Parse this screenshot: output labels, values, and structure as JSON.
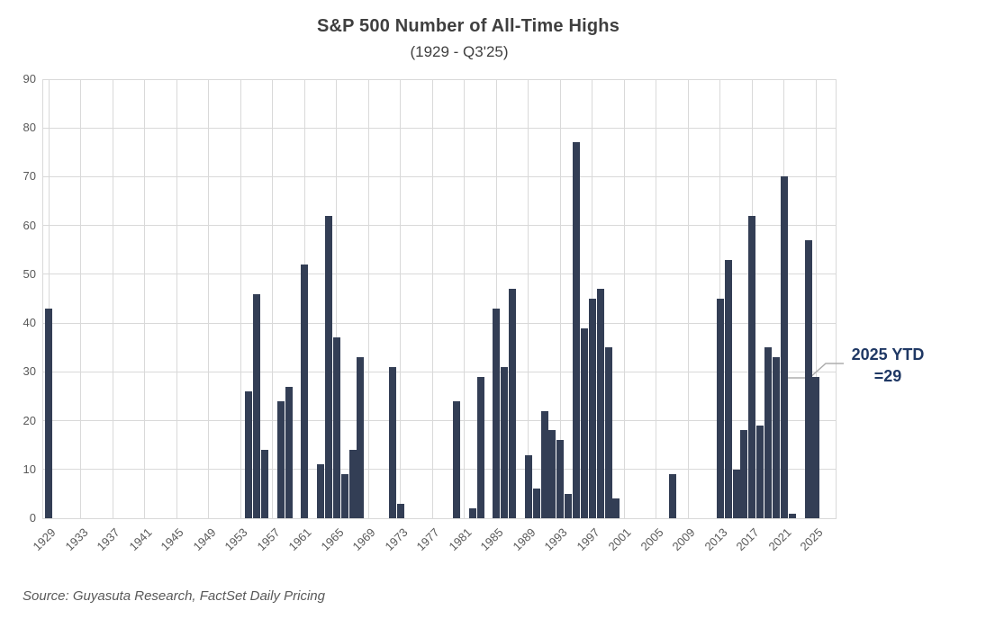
{
  "title": "S&P 500 Number of All-Time Highs",
  "subtitle": "(1929 - Q3'25)",
  "source": "Source: Guyasuta Research, FactSet Daily Pricing",
  "annotation": {
    "line1": "2025 YTD",
    "line2": "=29"
  },
  "colors": {
    "bar": "#333e55",
    "title_text": "#3f3f3f",
    "axis_label": "#595959",
    "gridline": "#d9d9d9",
    "annotation_text": "#1f3864",
    "leader_line": "#adadad",
    "background": "#ffffff"
  },
  "chart_data": {
    "type": "bar",
    "title": "S&P 500 Number of All-Time Highs",
    "subtitle": "(1929 - Q3'25)",
    "xlabel": "",
    "ylabel": "",
    "x_range": [
      1929,
      2025
    ],
    "ylim": [
      0,
      90
    ],
    "y_ticks": [
      0,
      10,
      20,
      30,
      40,
      50,
      60,
      70,
      80,
      90
    ],
    "x_tick_years": [
      1929,
      1933,
      1937,
      1941,
      1945,
      1949,
      1953,
      1957,
      1961,
      1965,
      1969,
      1973,
      1977,
      1981,
      1985,
      1989,
      1993,
      1997,
      2001,
      2005,
      2009,
      2013,
      2017,
      2021,
      2025
    ],
    "grid": true,
    "legend": false,
    "values_by_year": {
      "1929": 43,
      "1954": 26,
      "1955": 46,
      "1956": 14,
      "1958": 24,
      "1959": 27,
      "1961": 52,
      "1963": 11,
      "1964": 62,
      "1965": 37,
      "1966": 9,
      "1967": 14,
      "1968": 33,
      "1972": 31,
      "1973": 3,
      "1980": 24,
      "1982": 2,
      "1983": 29,
      "1985": 43,
      "1986": 31,
      "1987": 47,
      "1989": 13,
      "1990": 6,
      "1991": 22,
      "1992": 18,
      "1993": 16,
      "1994": 5,
      "1995": 77,
      "1996": 39,
      "1997": 45,
      "1998": 47,
      "1999": 35,
      "2000": 4,
      "2007": 9,
      "2013": 45,
      "2014": 53,
      "2015": 10,
      "2016": 18,
      "2017": 62,
      "2018": 19,
      "2019": 35,
      "2020": 33,
      "2021": 70,
      "2022": 1,
      "2024": 57,
      "2025": 29
    },
    "note_all_unlisted_years": 0,
    "annotation_text": "2025 YTD =29",
    "annotation_points_to_year": 2025
  }
}
